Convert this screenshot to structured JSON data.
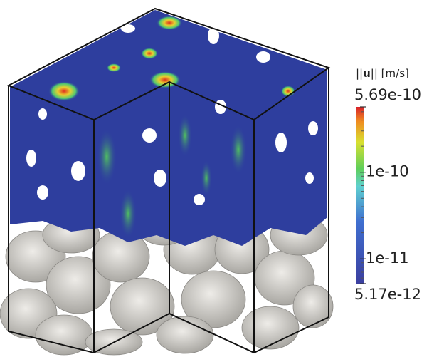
{
  "chart_data": {
    "type": "colorbar",
    "title_parts": [
      "||",
      "u",
      "|| [m/s]"
    ],
    "clim": [
      5.17e-12,
      5.69e-10
    ],
    "ticks": [
      5.69e-10,
      1e-10,
      1e-11,
      5.17e-12
    ],
    "log_scale": true
  }
}
